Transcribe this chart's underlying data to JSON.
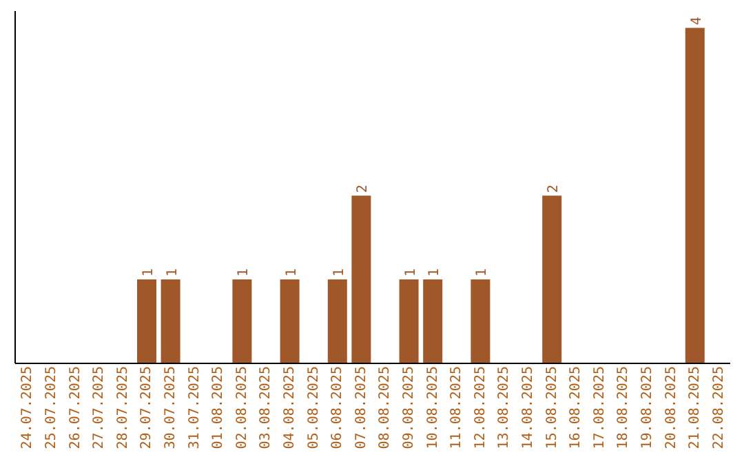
{
  "chart_data": {
    "type": "bar",
    "categories": [
      "24.07.2025",
      "25.07.2025",
      "26.07.2025",
      "27.07.2025",
      "28.07.2025",
      "29.07.2025",
      "30.07.2025",
      "31.07.2025",
      "01.08.2025",
      "02.08.2025",
      "03.08.2025",
      "04.08.2025",
      "05.08.2025",
      "06.08.2025",
      "07.08.2025",
      "08.08.2025",
      "09.08.2025",
      "10.08.2025",
      "11.08.2025",
      "12.08.2025",
      "13.08.2025",
      "14.08.2025",
      "15.08.2025",
      "16.08.2025",
      "17.08.2025",
      "18.08.2025",
      "19.08.2025",
      "20.08.2025",
      "21.08.2025",
      "22.08.2025"
    ],
    "values": [
      0,
      0,
      0,
      0,
      0,
      1,
      1,
      0,
      0,
      1,
      0,
      1,
      0,
      1,
      2,
      0,
      1,
      1,
      0,
      1,
      0,
      0,
      2,
      0,
      0,
      0,
      0,
      0,
      4,
      0
    ],
    "value_labels": [
      null,
      null,
      null,
      null,
      null,
      "1",
      "1",
      null,
      null,
      "1",
      null,
      "1",
      null,
      "1",
      "2",
      null,
      "1",
      "1",
      null,
      "1",
      null,
      null,
      "2",
      null,
      null,
      null,
      null,
      null,
      "4",
      null
    ],
    "color": "#a0582a",
    "grid": false,
    "legend": false,
    "tick_labels": "x"
  }
}
